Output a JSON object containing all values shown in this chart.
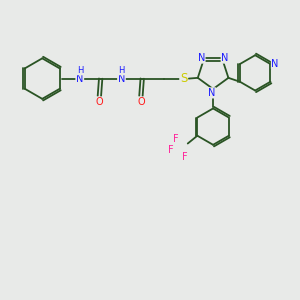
{
  "bg_color": "#e8eae8",
  "bond_color": "#2a5424",
  "bond_lw": 1.3,
  "N_color": "#1a1aff",
  "O_color": "#ff1a1a",
  "S_color": "#cccc00",
  "F_color": "#ff2299",
  "label_fs": 7.0,
  "small_fs": 6.0,
  "xlim": [
    -0.5,
    11.0
  ],
  "ylim": [
    -2.5,
    8.0
  ]
}
